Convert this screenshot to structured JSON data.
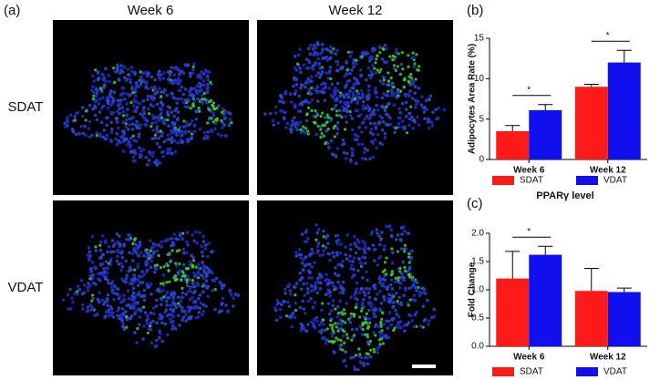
{
  "panel_a": {
    "label": "(a)",
    "columns": [
      "Week 6",
      "Week 12"
    ],
    "rows": [
      "SDAT",
      "VDAT"
    ]
  },
  "chart_data": [
    {
      "type": "bar",
      "panel_label": "(b)",
      "ylabel": "Adipocytes Area Rate (%)",
      "categories": [
        "Week 6",
        "Week 12"
      ],
      "series": [
        {
          "name": "SDAT",
          "color": "#ff1a1a",
          "values": [
            3.5,
            9.0
          ],
          "errors": [
            0.7,
            0.3
          ]
        },
        {
          "name": "VDAT",
          "color": "#1010ee",
          "values": [
            6.1,
            12.0
          ],
          "errors": [
            0.7,
            1.5
          ]
        }
      ],
      "ylim": [
        0,
        15
      ],
      "yticks": [
        0,
        5,
        10,
        15
      ],
      "annotations": [
        {
          "text": "*",
          "category": "Week 6"
        },
        {
          "text": "*",
          "category": "Week 12"
        }
      ]
    },
    {
      "type": "bar",
      "panel_label": "(c)",
      "title": "PPARγ level",
      "ylabel": "Fold Change",
      "categories": [
        "Week 6",
        "Week 12"
      ],
      "series": [
        {
          "name": "SDAT",
          "color": "#ff1a1a",
          "values": [
            1.2,
            0.98
          ],
          "errors": [
            0.48,
            0.4
          ]
        },
        {
          "name": "VDAT",
          "color": "#1010ee",
          "values": [
            1.62,
            0.96
          ],
          "errors": [
            0.15,
            0.07
          ]
        }
      ],
      "ylim": [
        0,
        2
      ],
      "yticks": [
        {
          "value": 0,
          "label": "0.0"
        },
        {
          "value": 0.5,
          "label": "0.5"
        },
        {
          "value": 1,
          "label": "1.0"
        },
        {
          "value": 1.5,
          "label": "1.5"
        },
        {
          "value": 2,
          "label": "2.0"
        }
      ],
      "annotations": [
        {
          "text": "*",
          "category": "Week 6"
        }
      ]
    }
  ]
}
